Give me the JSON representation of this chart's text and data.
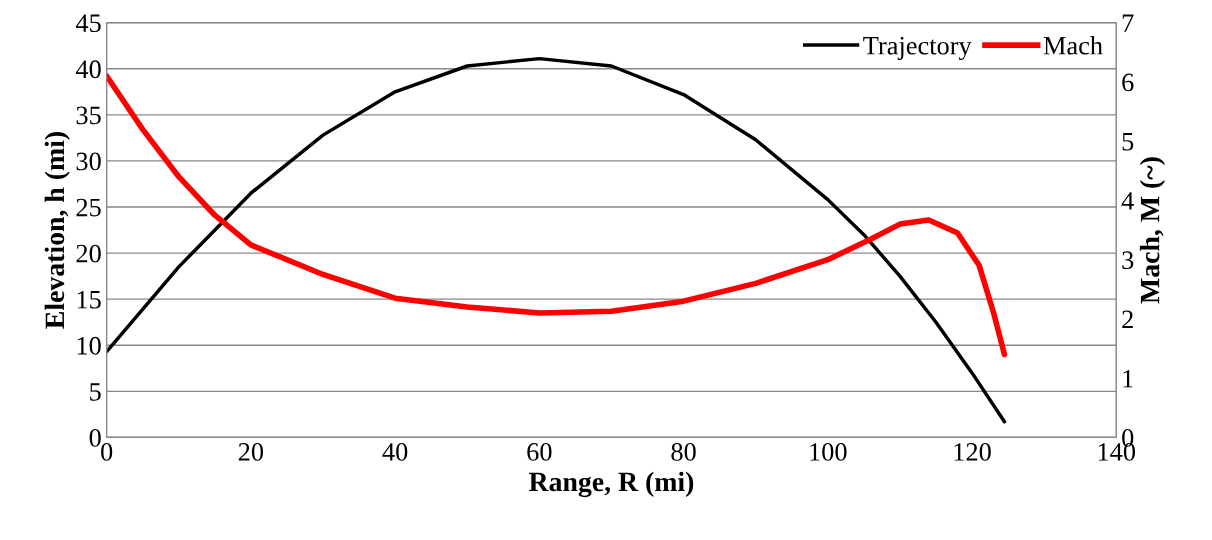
{
  "chart_data": {
    "type": "line",
    "xlabel": "Range, R (mi)",
    "ylabel": "Elevation, h (mi)",
    "y2label": "Mach, M (~)",
    "xlim": [
      0,
      140
    ],
    "xticks": [
      0,
      20,
      40,
      60,
      80,
      100,
      120,
      140
    ],
    "ylim": [
      0,
      45
    ],
    "yticks": [
      0,
      5,
      10,
      15,
      20,
      25,
      30,
      35,
      40,
      45
    ],
    "y2lim": [
      0,
      7
    ],
    "y2ticks": [
      0,
      1,
      2,
      3,
      4,
      5,
      6,
      7
    ],
    "grid": "y",
    "legend": "top right",
    "marker": "none",
    "line_style": "solid",
    "series": [
      {
        "name": "Trajectory",
        "color": "#000000",
        "x": [
          0,
          10,
          20,
          30,
          40,
          50,
          60,
          70,
          80,
          90,
          100,
          105,
          110,
          115,
          120,
          124.5
        ],
        "values": [
          9.3,
          18.5,
          26.5,
          32.8,
          37.5,
          40.3,
          41.1,
          40.3,
          37.2,
          32.3,
          25.8,
          22,
          17.5,
          12.5,
          7,
          1.7
        ]
      },
      {
        "name": "Mach",
        "color": "#ff0000",
        "axis": "y2",
        "x": [
          0,
          5,
          10,
          15,
          20,
          30,
          40,
          50,
          60,
          70,
          80,
          90,
          100,
          106,
          110,
          114,
          118,
          121,
          123,
          124.5
        ],
        "values": [
          6.1,
          5.2,
          4.4,
          3.75,
          3.25,
          2.75,
          2.35,
          2.2,
          2.1,
          2.13,
          2.3,
          2.6,
          3.0,
          3.35,
          3.6,
          3.67,
          3.45,
          2.9,
          2.1,
          1.4
        ]
      }
    ]
  }
}
